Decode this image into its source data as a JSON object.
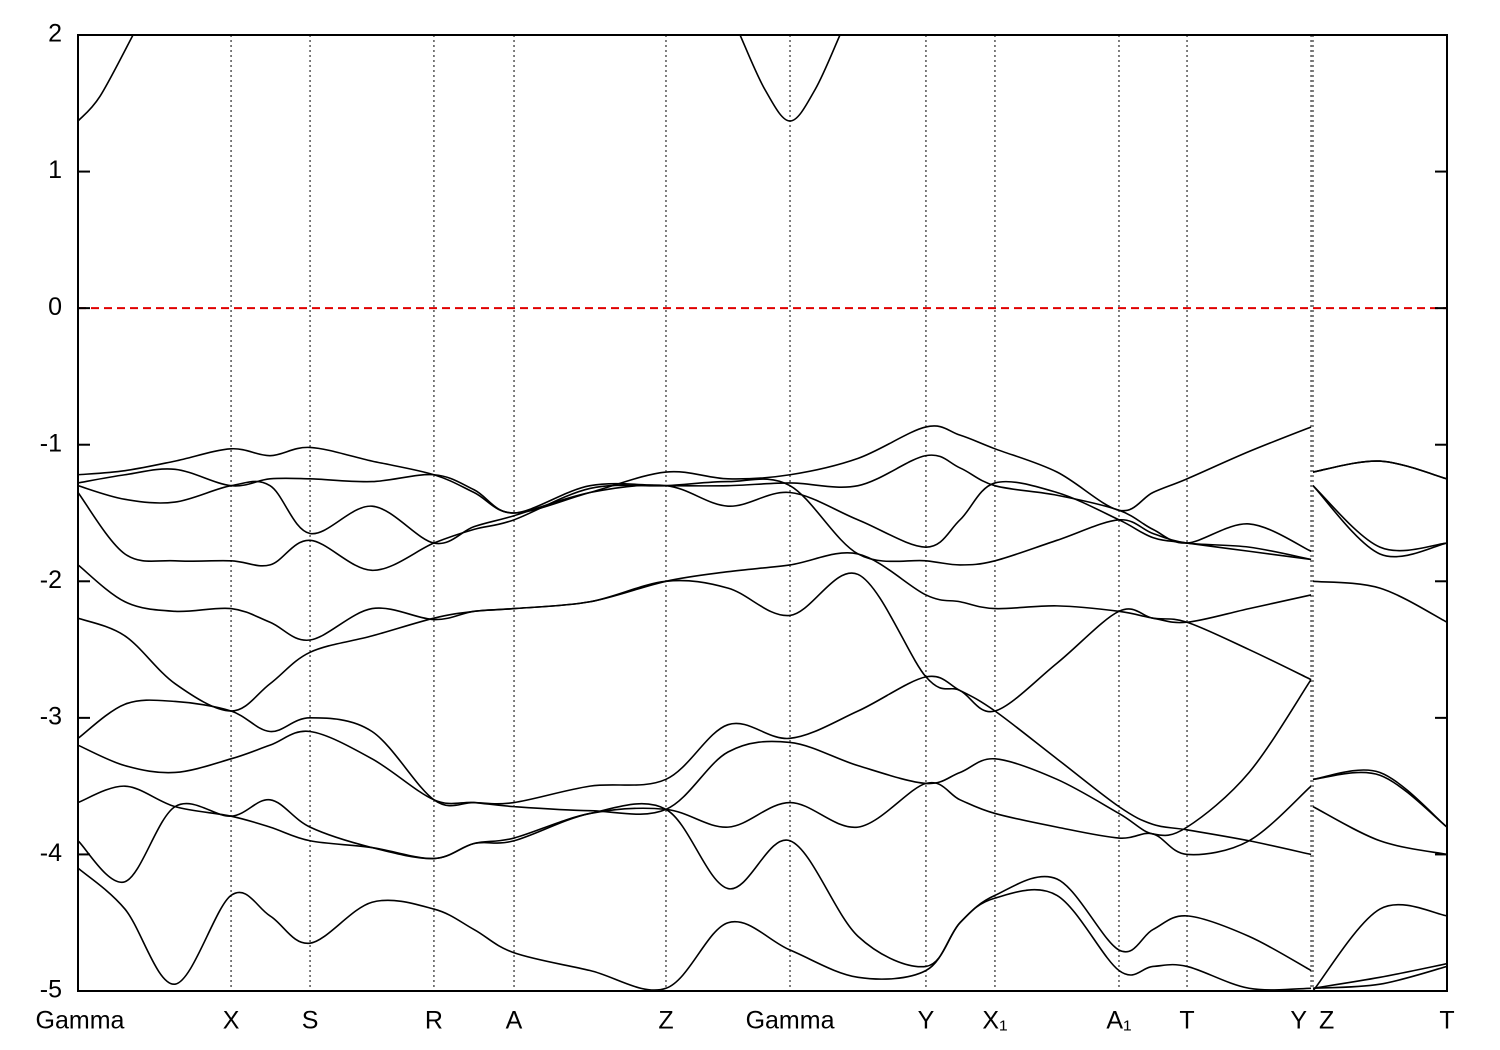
{
  "chart_data": {
    "type": "line",
    "color": "#000000",
    "xlim": [
      0,
      1
    ],
    "ylim": [
      -5,
      2
    ],
    "yticks": [
      -5,
      -4,
      -3,
      -2,
      -1,
      0,
      1,
      2
    ],
    "xticks": [
      {
        "value": 0,
        "label": "Gamma"
      },
      {
        "value": 0.1118,
        "label": "X"
      },
      {
        "value": 0.1695,
        "label": "S"
      },
      {
        "value": 0.26,
        "label": "R"
      },
      {
        "value": 0.3185,
        "label": "A"
      },
      {
        "value": 0.4295,
        "label": "Z"
      },
      {
        "value": 0.5201,
        "label": "Gamma"
      },
      {
        "value": 0.6194,
        "label": "Y"
      },
      {
        "value": 0.6698,
        "label": "X₁"
      },
      {
        "value": 0.7604,
        "label": "A₁"
      },
      {
        "value": 0.8101,
        "label": "T"
      },
      {
        "value": 0.9007,
        "label": "Y"
      },
      {
        "value": 0.9021,
        "label": "Z"
      },
      {
        "value": 1,
        "label": "T"
      }
    ],
    "grid": true,
    "reference_line": {
      "value": 0,
      "color": "#e00000",
      "style": "dashed"
    },
    "x": [
      0,
      0.0343,
      0.0709,
      0.1118,
      0.1403,
      0.1695,
      0.2148,
      0.26,
      0.2893,
      0.3185,
      0.374,
      0.4295,
      0.4748,
      0.5201,
      0.5698,
      0.6194,
      0.6443,
      0.6698,
      0.7151,
      0.7604,
      0.7852,
      0.8101,
      0.8554,
      0.9007,
      0.9014,
      0.9021,
      0.951,
      1
    ],
    "series": [
      {
        "x": [
          0,
          0.016,
          0.0402
        ],
        "values": [
          1.37,
          1.55,
          2.0
        ]
      },
      {
        "x": [
          0.4836,
          0.5018,
          0.5201,
          0.5384,
          0.5566
        ],
        "values": [
          2.0,
          1.6,
          1.37,
          1.6,
          2.0
        ]
      },
      {
        "values": [
          -1.22,
          -1.19,
          -1.12,
          -1.03,
          -1.08,
          -1.02,
          -1.12,
          -1.22,
          -1.35,
          -1.5,
          -1.35,
          -1.2,
          -1.25,
          -1.22,
          -1.1,
          -0.87,
          -0.93,
          -1.03,
          -1.2,
          -1.48,
          -1.35,
          -1.25,
          -1.05,
          -0.87,
          null,
          -1.2,
          -1.12,
          -1.25
        ]
      },
      {
        "values": [
          -1.28,
          -1.22,
          -1.18,
          -1.3,
          -1.25,
          -1.25,
          -1.27,
          -1.22,
          -1.33,
          -1.5,
          -1.3,
          -1.3,
          -1.3,
          -1.28,
          -1.3,
          -1.08,
          -1.17,
          -1.3,
          -1.37,
          -1.48,
          -1.62,
          -1.72,
          -1.58,
          -1.78,
          null,
          -1.3,
          -1.75,
          -1.72
        ]
      },
      {
        "values": [
          -1.3,
          -1.4,
          -1.42,
          -1.3,
          -1.3,
          -1.65,
          -1.45,
          -1.72,
          -1.6,
          -1.52,
          -1.35,
          -1.3,
          -1.45,
          -1.35,
          -1.55,
          -1.75,
          -1.55,
          -1.28,
          -1.35,
          -1.55,
          -1.68,
          -1.72,
          -1.78,
          -1.84,
          null,
          -1.3,
          -1.8,
          -1.72
        ]
      },
      {
        "values": [
          -1.35,
          -1.8,
          -1.85,
          -1.85,
          -1.88,
          -1.7,
          -1.92,
          -1.72,
          -1.62,
          -1.55,
          -1.32,
          -1.3,
          -1.27,
          -1.3,
          -1.8,
          -1.85,
          -1.88,
          -1.85,
          -1.7,
          -1.55,
          -1.65,
          -1.72,
          -1.75,
          -1.84,
          null,
          -1.2,
          -1.12,
          -1.25
        ]
      },
      {
        "values": [
          -1.88,
          -2.15,
          -2.22,
          -2.2,
          -2.3,
          -2.43,
          -2.2,
          -2.28,
          -2.22,
          -2.2,
          -2.15,
          -2.0,
          -1.93,
          -1.88,
          -1.8,
          -2.1,
          -2.15,
          -2.2,
          -2.18,
          -2.22,
          -2.27,
          -2.3,
          -2.2,
          -2.1,
          null,
          -3.45,
          -3.4,
          -3.8
        ]
      },
      {
        "values": [
          -2.27,
          -2.4,
          -2.75,
          -2.95,
          -2.75,
          -2.52,
          -2.4,
          -2.27,
          -2.22,
          -2.2,
          -2.15,
          -2.0,
          -2.05,
          -2.25,
          -1.95,
          -2.7,
          -2.8,
          -2.95,
          -2.6,
          -2.22,
          -2.27,
          -2.3,
          -2.5,
          -2.72,
          null,
          -2.0,
          -2.05,
          -2.3
        ]
      },
      {
        "values": [
          -3.15,
          -2.9,
          -2.88,
          -2.95,
          -3.1,
          -3.0,
          -3.1,
          -3.6,
          -3.62,
          -3.62,
          -3.5,
          -3.45,
          -3.05,
          -3.15,
          -2.95,
          -2.7,
          -2.8,
          -2.95,
          -3.3,
          -3.65,
          -3.78,
          -3.82,
          -3.9,
          -4.0,
          null,
          -3.65,
          -3.9,
          -4.0
        ]
      },
      {
        "values": [
          -3.2,
          -3.35,
          -3.4,
          -3.3,
          -3.2,
          -3.1,
          -3.3,
          -3.6,
          -3.62,
          -3.65,
          -3.68,
          -3.67,
          -3.25,
          -3.18,
          -3.35,
          -3.48,
          -3.4,
          -3.3,
          -3.45,
          -3.7,
          -3.85,
          -3.8,
          -3.4,
          -2.72,
          null,
          -3.45,
          -3.42,
          -3.8
        ]
      },
      {
        "values": [
          -3.62,
          -3.5,
          -3.65,
          -3.72,
          -3.8,
          -3.9,
          -3.95,
          -4.03,
          -3.92,
          -3.88,
          -3.7,
          -3.67,
          -3.8,
          -3.62,
          -3.8,
          -3.48,
          -3.6,
          -3.7,
          -3.8,
          -3.88,
          -3.85,
          -4.0,
          -3.9,
          -3.5,
          null,
          -4.98,
          -4.9,
          -4.8
        ]
      },
      {
        "values": [
          -3.9,
          -4.2,
          -3.65,
          -3.72,
          -3.6,
          -3.8,
          -3.95,
          -4.03,
          -3.92,
          -3.9,
          -3.7,
          -3.67,
          -4.25,
          -3.9,
          -4.6,
          -4.82,
          -4.5,
          -4.3,
          -4.18,
          -4.7,
          -4.55,
          -4.45,
          -4.6,
          -4.85,
          null,
          -5.0,
          -4.4,
          -4.45
        ]
      },
      {
        "values": [
          -4.1,
          -4.4,
          -4.95,
          -4.3,
          -4.45,
          -4.65,
          -4.35,
          -4.4,
          -4.55,
          -4.72,
          -4.85,
          -4.98,
          -4.5,
          -4.7,
          -4.9,
          -4.85,
          -4.5,
          -4.32,
          -4.3,
          -4.85,
          -4.82,
          -4.82,
          -4.98,
          -4.98,
          null,
          -4.98,
          -4.95,
          -4.82
        ]
      }
    ]
  }
}
